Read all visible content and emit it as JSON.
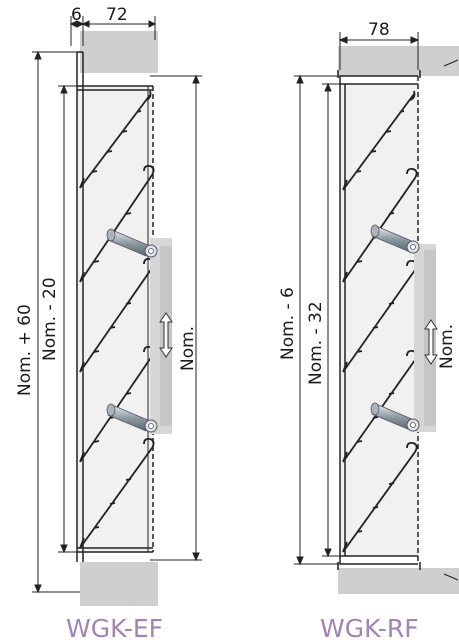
{
  "left": {
    "dims": {
      "top_a": "6",
      "top_b": "72",
      "outer_height": "Nom. + 60",
      "inner_height": "Nom. - 20",
      "opening": "Nom."
    },
    "caption": "WGK-EF"
  },
  "right": {
    "dims": {
      "top": "78",
      "outer_height": "Nom. - 6",
      "inner_height": "Nom. - 32",
      "opening": "Nom."
    },
    "caption": "WGK-RF"
  },
  "colors": {
    "wall": "#cfcfcf",
    "frame_fill": "#f1f1f1",
    "caption": "#a184b4",
    "steel": "#9aa4ab"
  }
}
